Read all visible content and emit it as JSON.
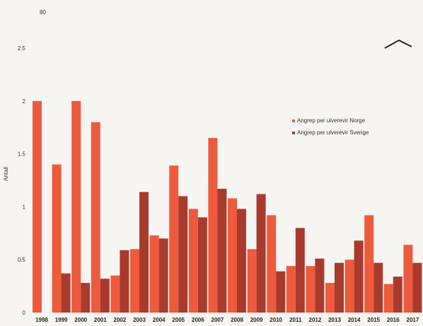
{
  "chart_data": {
    "type": "bar",
    "title": "",
    "xlabel": "",
    "ylabel": "Antall",
    "top_label": "80",
    "ylim": [
      0,
      2.5
    ],
    "yticks": [
      {
        "value": 0,
        "label": "0"
      },
      {
        "value": 0.5,
        "label": "0.5"
      },
      {
        "value": 1,
        "label": "1"
      },
      {
        "value": 1.5,
        "label": "1.5"
      },
      {
        "value": 2,
        "label": "2"
      },
      {
        "value": 2.5,
        "label": "2.5"
      }
    ],
    "grid": false,
    "legend_position": "right",
    "categories": [
      "1998",
      "1999",
      "2000",
      "2001",
      "2002",
      "2003",
      "2004",
      "2005",
      "2006",
      "2007",
      "2008",
      "2009",
      "2010",
      "2011",
      "2012",
      "2013",
      "2014",
      "2015",
      "2016",
      "2017"
    ],
    "series": [
      {
        "name": "Angrep per ulverevir Norge",
        "color": "#ee5a3c",
        "values": [
          2.0,
          1.4,
          2.0,
          1.8,
          0.35,
          0.6,
          0.73,
          1.39,
          0.98,
          1.65,
          1.08,
          0.6,
          0.92,
          0.44,
          0.44,
          0.28,
          0.5,
          0.92,
          0.27,
          0.64
        ]
      },
      {
        "name": "Angrep per ulverevir Sverige",
        "color": "#a93a2e",
        "values": [
          null,
          0.37,
          0.28,
          0.32,
          0.59,
          1.14,
          0.7,
          1.1,
          0.9,
          1.17,
          0.98,
          1.12,
          0.39,
          0.8,
          0.51,
          0.47,
          0.68,
          0.47,
          0.34,
          0.47
        ]
      }
    ]
  }
}
